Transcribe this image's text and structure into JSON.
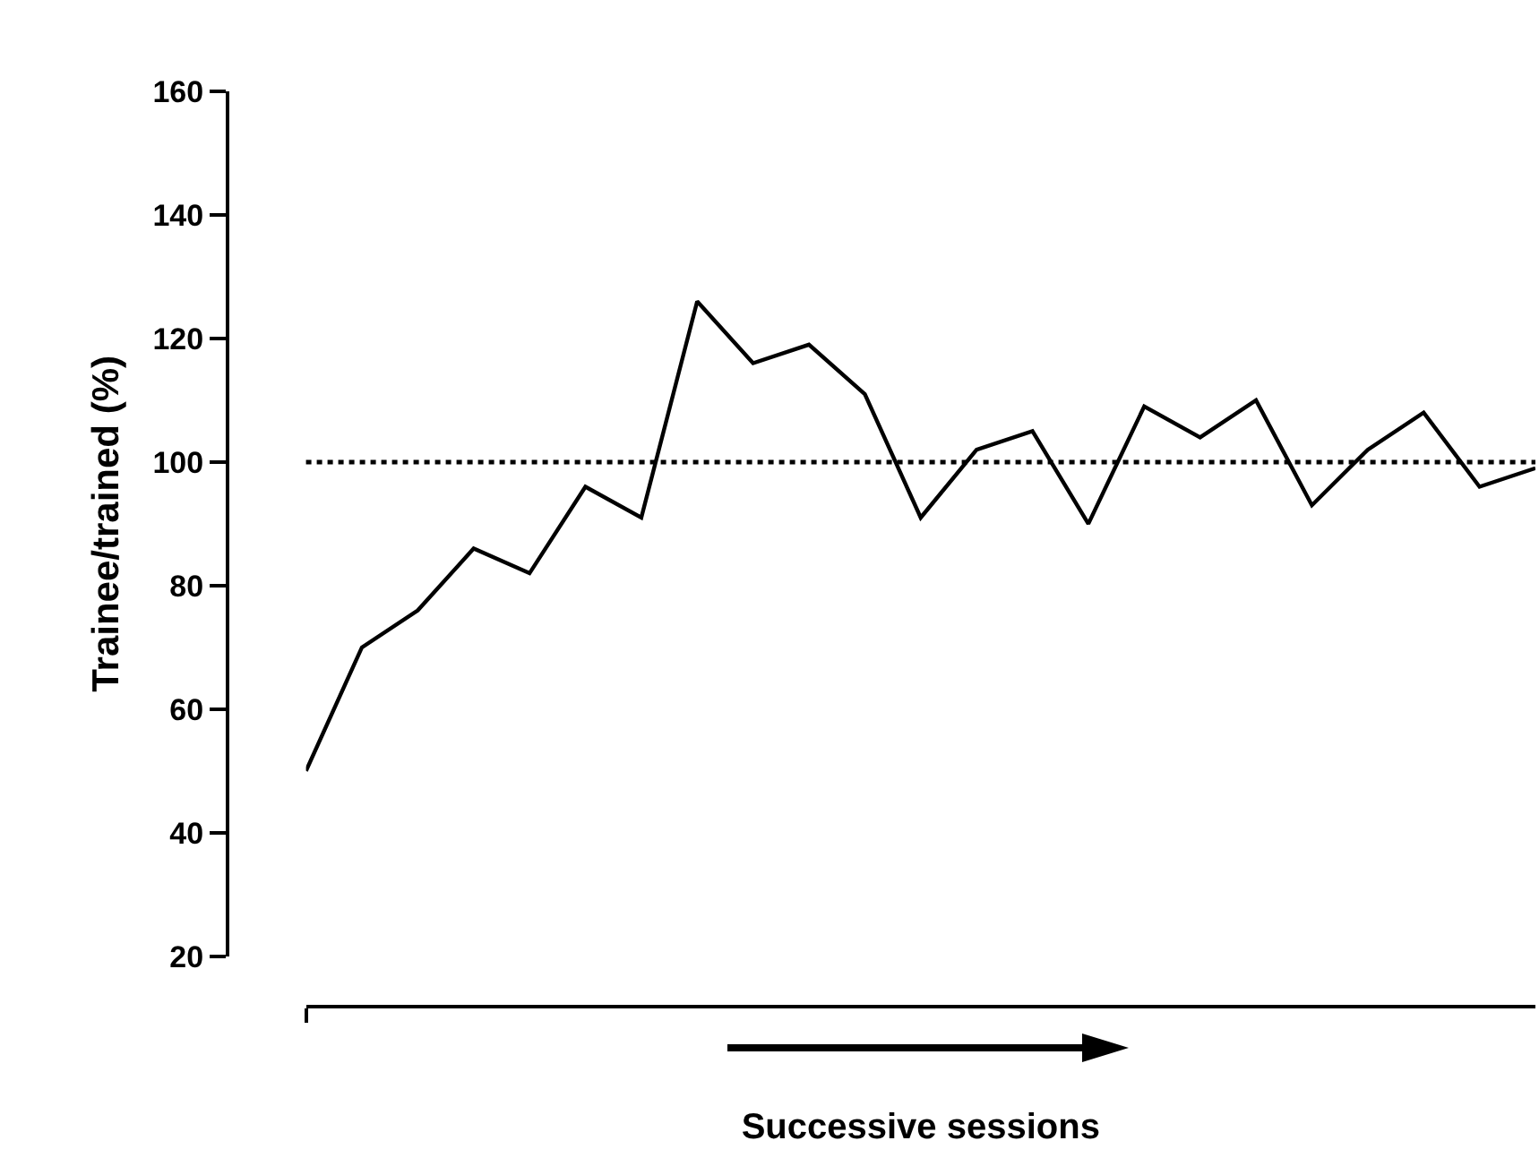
{
  "chart_data": {
    "type": "line",
    "xlabel": "Successive sessions",
    "ylabel": "Trainee/trained (%)",
    "categories": [
      null,
      null,
      null,
      null,
      null,
      null,
      null,
      null,
      null,
      null,
      null,
      null,
      null,
      null,
      null,
      null,
      null,
      null,
      null,
      null,
      null,
      null,
      null
    ],
    "series": [
      {
        "color": "#000000",
        "values": [
          50,
          70,
          76,
          86,
          82,
          96,
          91,
          126,
          116,
          119,
          111,
          91,
          102,
          105,
          90,
          109,
          104,
          110,
          93,
          102,
          108,
          96,
          99
        ]
      }
    ],
    "ylim": [
      20,
      160
    ],
    "yticks": [
      20,
      40,
      60,
      80,
      100,
      120,
      140,
      160
    ],
    "ref_lines": [
      {
        "axis": "y",
        "value": 100,
        "color": "#000000",
        "line_style": "dotted"
      }
    ],
    "grid": false,
    "marker": "none",
    "line_style": "solid"
  }
}
